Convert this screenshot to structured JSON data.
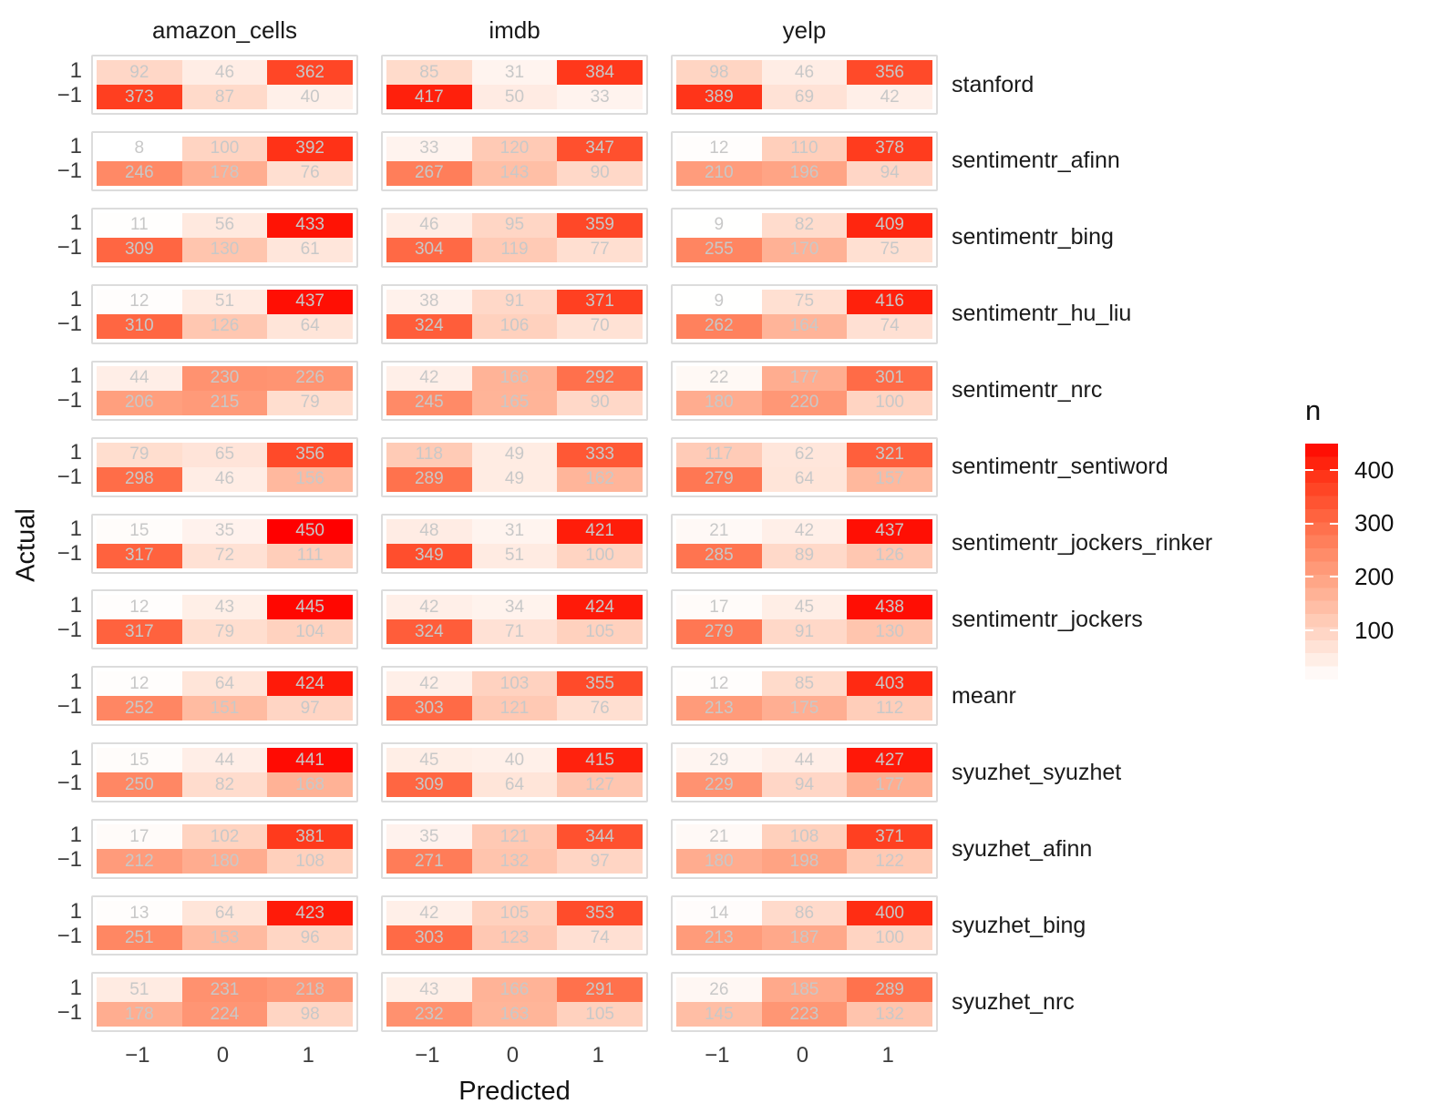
{
  "axes": {
    "x_title": "Predicted",
    "y_title": "Actual",
    "x_tick_labels": [
      "−1",
      "0",
      "1"
    ],
    "y_tick_labels": [
      "1",
      "−1"
    ]
  },
  "facets": {
    "columns": [
      "amazon_cells",
      "imdb",
      "yelp"
    ],
    "rows": [
      "stanford",
      "sentimentr_afinn",
      "sentimentr_bing",
      "sentimentr_hu_liu",
      "sentimentr_nrc",
      "sentimentr_sentiword",
      "sentimentr_jockers_rinker",
      "sentimentr_jockers",
      "meanr",
      "syuzhet_syuzhet",
      "syuzhet_afinn",
      "syuzhet_bing",
      "syuzhet_nrc"
    ]
  },
  "legend": {
    "title": "n",
    "ticks": [
      400,
      300,
      200,
      100
    ],
    "limits": [
      8,
      450
    ],
    "low_color": "#FFFFFF",
    "high_color": "#FF0000"
  },
  "colors": {
    "cell_text": "#c8c8c8",
    "panel_border": "#dcdcdc",
    "axis_text": "#3c3c3c",
    "label_text": "#1a1a1a"
  },
  "chart_data": {
    "type": "heatmap",
    "title": "",
    "xlabel": "Predicted",
    "ylabel": "Actual",
    "x": [
      -1,
      0,
      1
    ],
    "y": [
      1,
      -1
    ],
    "facet_columns": [
      "amazon_cells",
      "imdb",
      "yelp"
    ],
    "fill_scale": {
      "name": "n",
      "low": "#FFFFFF",
      "high": "#FF0000",
      "limits": [
        8,
        450
      ],
      "legend_ticks": [
        100,
        200,
        300,
        400
      ]
    },
    "matrices": [
      {
        "method": "stanford",
        "panels": [
          [
            [
              92,
              46,
              362
            ],
            [
              373,
              87,
              40
            ]
          ],
          [
            [
              85,
              31,
              384
            ],
            [
              417,
              50,
              33
            ]
          ],
          [
            [
              98,
              46,
              356
            ],
            [
              389,
              69,
              42
            ]
          ]
        ]
      },
      {
        "method": "sentimentr_afinn",
        "panels": [
          [
            [
              8,
              100,
              392
            ],
            [
              246,
              178,
              76
            ]
          ],
          [
            [
              33,
              120,
              347
            ],
            [
              267,
              143,
              90
            ]
          ],
          [
            [
              12,
              110,
              378
            ],
            [
              210,
              196,
              94
            ]
          ]
        ]
      },
      {
        "method": "sentimentr_bing",
        "panels": [
          [
            [
              11,
              56,
              433
            ],
            [
              309,
              130,
              61
            ]
          ],
          [
            [
              46,
              95,
              359
            ],
            [
              304,
              119,
              77
            ]
          ],
          [
            [
              9,
              82,
              409
            ],
            [
              255,
              170,
              75
            ]
          ]
        ]
      },
      {
        "method": "sentimentr_hu_liu",
        "panels": [
          [
            [
              12,
              51,
              437
            ],
            [
              310,
              126,
              64
            ]
          ],
          [
            [
              38,
              91,
              371
            ],
            [
              324,
              106,
              70
            ]
          ],
          [
            [
              9,
              75,
              416
            ],
            [
              262,
              164,
              74
            ]
          ]
        ]
      },
      {
        "method": "sentimentr_nrc",
        "panels": [
          [
            [
              44,
              230,
              226
            ],
            [
              206,
              215,
              79
            ]
          ],
          [
            [
              42,
              166,
              292
            ],
            [
              245,
              165,
              90
            ]
          ],
          [
            [
              22,
              177,
              301
            ],
            [
              180,
              220,
              100
            ]
          ]
        ]
      },
      {
        "method": "sentimentr_sentiword",
        "panels": [
          [
            [
              79,
              65,
              356
            ],
            [
              298,
              46,
              156
            ]
          ],
          [
            [
              118,
              49,
              333
            ],
            [
              289,
              49,
              162
            ]
          ],
          [
            [
              117,
              62,
              321
            ],
            [
              279,
              64,
              157
            ]
          ]
        ]
      },
      {
        "method": "sentimentr_jockers_rinker",
        "panels": [
          [
            [
              15,
              35,
              450
            ],
            [
              317,
              72,
              111
            ]
          ],
          [
            [
              48,
              31,
              421
            ],
            [
              349,
              51,
              100
            ]
          ],
          [
            [
              21,
              42,
              437
            ],
            [
              285,
              89,
              126
            ]
          ]
        ]
      },
      {
        "method": "sentimentr_jockers",
        "panels": [
          [
            [
              12,
              43,
              445
            ],
            [
              317,
              79,
              104
            ]
          ],
          [
            [
              42,
              34,
              424
            ],
            [
              324,
              71,
              105
            ]
          ],
          [
            [
              17,
              45,
              438
            ],
            [
              279,
              91,
              130
            ]
          ]
        ]
      },
      {
        "method": "meanr",
        "panels": [
          [
            [
              12,
              64,
              424
            ],
            [
              252,
              151,
              97
            ]
          ],
          [
            [
              42,
              103,
              355
            ],
            [
              303,
              121,
              76
            ]
          ],
          [
            [
              12,
              85,
              403
            ],
            [
              213,
              175,
              112
            ]
          ]
        ]
      },
      {
        "method": "syuzhet_syuzhet",
        "panels": [
          [
            [
              15,
              44,
              441
            ],
            [
              250,
              82,
              168
            ]
          ],
          [
            [
              45,
              40,
              415
            ],
            [
              309,
              64,
              127
            ]
          ],
          [
            [
              29,
              44,
              427
            ],
            [
              229,
              94,
              177
            ]
          ]
        ]
      },
      {
        "method": "syuzhet_afinn",
        "panels": [
          [
            [
              17,
              102,
              381
            ],
            [
              212,
              180,
              108
            ]
          ],
          [
            [
              35,
              121,
              344
            ],
            [
              271,
              132,
              97
            ]
          ],
          [
            [
              21,
              108,
              371
            ],
            [
              180,
              198,
              122
            ]
          ]
        ]
      },
      {
        "method": "syuzhet_bing",
        "panels": [
          [
            [
              13,
              64,
              423
            ],
            [
              251,
              153,
              96
            ]
          ],
          [
            [
              42,
              105,
              353
            ],
            [
              303,
              123,
              74
            ]
          ],
          [
            [
              14,
              86,
              400
            ],
            [
              213,
              187,
              100
            ]
          ]
        ]
      },
      {
        "method": "syuzhet_nrc",
        "panels": [
          [
            [
              51,
              231,
              218
            ],
            [
              178,
              224,
              98
            ]
          ],
          [
            [
              43,
              166,
              291
            ],
            [
              232,
              163,
              105
            ]
          ],
          [
            [
              26,
              185,
              289
            ],
            [
              145,
              223,
              132
            ]
          ]
        ]
      }
    ]
  }
}
